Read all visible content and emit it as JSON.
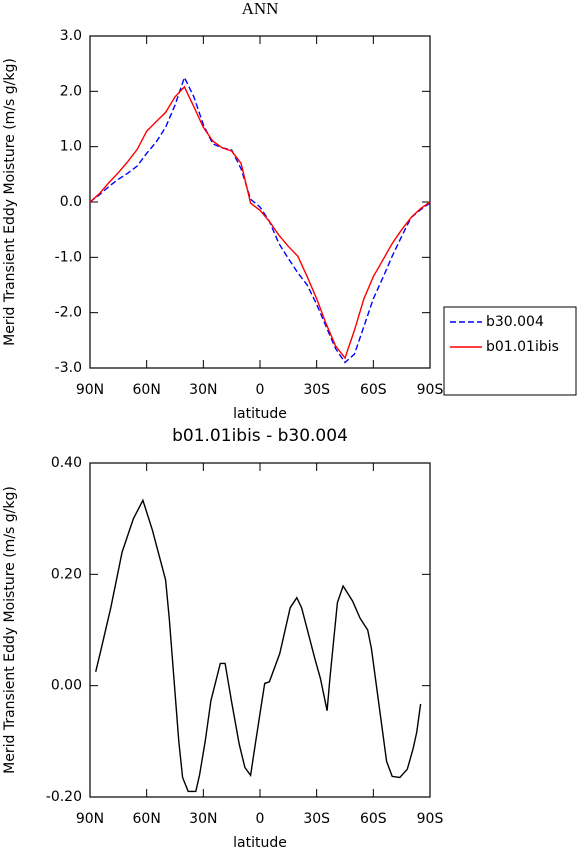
{
  "chart_data": [
    {
      "type": "line",
      "title": "ANN",
      "x_label": "latitude",
      "y_label": "Merid Transient Eddy Moisture (m/s g/kg)",
      "x": [
        90,
        85,
        80,
        75,
        70,
        65,
        60,
        55,
        50,
        45,
        40,
        35,
        30,
        25,
        20,
        15,
        10,
        5,
        0,
        -5,
        -10,
        -15,
        -20,
        -25,
        -30,
        -35,
        -40,
        -45,
        -50,
        -55,
        -60,
        -65,
        -70,
        -75,
        -80,
        -85,
        -90
      ],
      "series": [
        {
          "name": "b30.004",
          "color": "#0000ff",
          "dash": true,
          "values": [
            0.0,
            0.13,
            0.28,
            0.41,
            0.52,
            0.65,
            0.88,
            1.08,
            1.35,
            1.75,
            2.25,
            1.9,
            1.4,
            1.05,
            0.98,
            0.94,
            0.6,
            0.05,
            -0.09,
            -0.35,
            -0.75,
            -1.02,
            -1.28,
            -1.5,
            -1.85,
            -2.25,
            -2.65,
            -2.9,
            -2.75,
            -2.25,
            -1.75,
            -1.37,
            -0.98,
            -0.62,
            -0.28,
            -0.14,
            -0.02
          ]
        },
        {
          "name": "b01.01ibis",
          "color": "#ff0000",
          "dash": false,
          "values": [
            0.0,
            0.15,
            0.35,
            0.53,
            0.73,
            0.95,
            1.28,
            1.45,
            1.62,
            1.9,
            2.08,
            1.72,
            1.35,
            1.1,
            0.98,
            0.92,
            0.7,
            -0.02,
            -0.15,
            -0.35,
            -0.6,
            -0.8,
            -0.98,
            -1.35,
            -1.75,
            -2.2,
            -2.6,
            -2.82,
            -2.32,
            -1.75,
            -1.35,
            -1.05,
            -0.75,
            -0.5,
            -0.28,
            -0.12,
            0.0
          ]
        }
      ],
      "xlim": [
        90,
        -90
      ],
      "xticks": [
        {
          "value": 90,
          "label": "90N"
        },
        {
          "value": 60,
          "label": "60N"
        },
        {
          "value": 30,
          "label": "30N"
        },
        0,
        {
          "value": -30,
          "label": "30S"
        },
        {
          "value": -60,
          "label": "60S"
        },
        {
          "value": -90,
          "label": "90S"
        }
      ],
      "ylim": [
        -3,
        3
      ],
      "yticks": [
        {
          "value": -3,
          "label": "-3.0"
        },
        {
          "value": -2,
          "label": "-2.0"
        },
        {
          "value": -1,
          "label": "-1.0"
        },
        {
          "value": 0,
          "label": "0.0"
        },
        {
          "value": 1,
          "label": "1.0"
        },
        {
          "value": 2,
          "label": "2.0"
        },
        {
          "value": 3,
          "label": "3.0"
        }
      ],
      "legend": "right"
    },
    {
      "type": "line",
      "title": "b01.01ibis - b30.004",
      "x_label": "latitude",
      "y_label": "Merid Transient Eddy Moisture (m/s g/kg)",
      "x": [
        87,
        84,
        79,
        73,
        67,
        62,
        57,
        50,
        48,
        43,
        41,
        38,
        34,
        32,
        29,
        26,
        24,
        21,
        18.5,
        15,
        11,
        8,
        5,
        2.5,
        0,
        -2.5,
        -5,
        -10.5,
        -16,
        -19.5,
        -22,
        -29,
        -32,
        -35.5,
        -37,
        -41,
        -44,
        -49,
        -53,
        -57,
        -59,
        -64,
        -67,
        -70,
        -74,
        -78,
        -81,
        -83,
        -85
      ],
      "series": [
        {
          "name": "b01.01ibis - b30.004",
          "color": "#000000",
          "dash": false,
          "values": [
            0.025,
            0.067,
            0.14,
            0.24,
            0.3,
            0.333,
            0.28,
            0.19,
            0.12,
            -0.1,
            -0.165,
            -0.19,
            -0.19,
            -0.16,
            -0.1,
            -0.027,
            0.0,
            0.04,
            0.04,
            -0.03,
            -0.105,
            -0.147,
            -0.161,
            -0.105,
            -0.05,
            0.004,
            0.007,
            0.058,
            0.14,
            0.158,
            0.14,
            0.049,
            0.013,
            -0.045,
            0.013,
            0.149,
            0.179,
            0.152,
            0.121,
            0.1,
            0.067,
            -0.06,
            -0.136,
            -0.163,
            -0.165,
            -0.15,
            -0.114,
            -0.083,
            -0.033
          ]
        }
      ],
      "xlim": [
        90,
        -90
      ],
      "xticks": [
        {
          "value": 90,
          "label": "90N"
        },
        {
          "value": 60,
          "label": "60N"
        },
        {
          "value": 30,
          "label": "30N"
        },
        0,
        {
          "value": -30,
          "label": "30S"
        },
        {
          "value": -60,
          "label": "60S"
        },
        {
          "value": -90,
          "label": "90S"
        }
      ],
      "ylim": [
        -0.2,
        0.4
      ],
      "yticks": [
        {
          "value": -0.2,
          "label": "-0.20"
        },
        {
          "value": 0,
          "label": "0.00"
        },
        {
          "value": 0.2,
          "label": "0.20"
        },
        {
          "value": 0.4,
          "label": "0.40"
        }
      ]
    }
  ]
}
